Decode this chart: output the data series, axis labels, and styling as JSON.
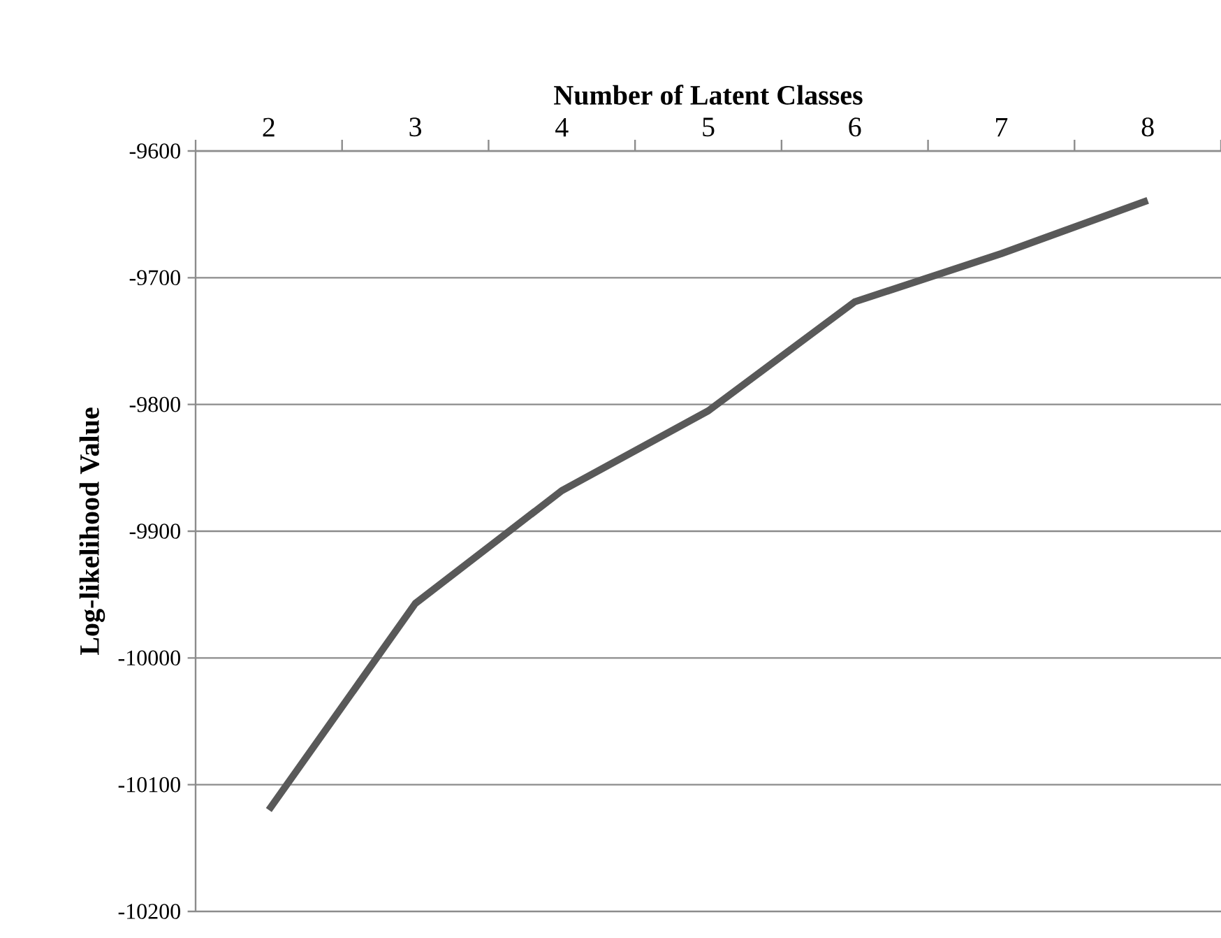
{
  "chart_data": {
    "type": "line",
    "xlabel": "Number of Latent Classes",
    "ylabel": "Log-likelihood Value",
    "categories": [
      "2",
      "3",
      "4",
      "5",
      "6",
      "7",
      "8"
    ],
    "series": [
      {
        "color": "#595959",
        "values": [
          -10120,
          -9957,
          -9868,
          -9805,
          -9719,
          -9681,
          -9639
        ]
      }
    ],
    "ylim": [
      -10200,
      -9600
    ],
    "yticks": [
      -10200,
      -10100,
      -10000,
      -9900,
      -9800,
      -9700,
      -9600
    ],
    "grid": "y"
  }
}
